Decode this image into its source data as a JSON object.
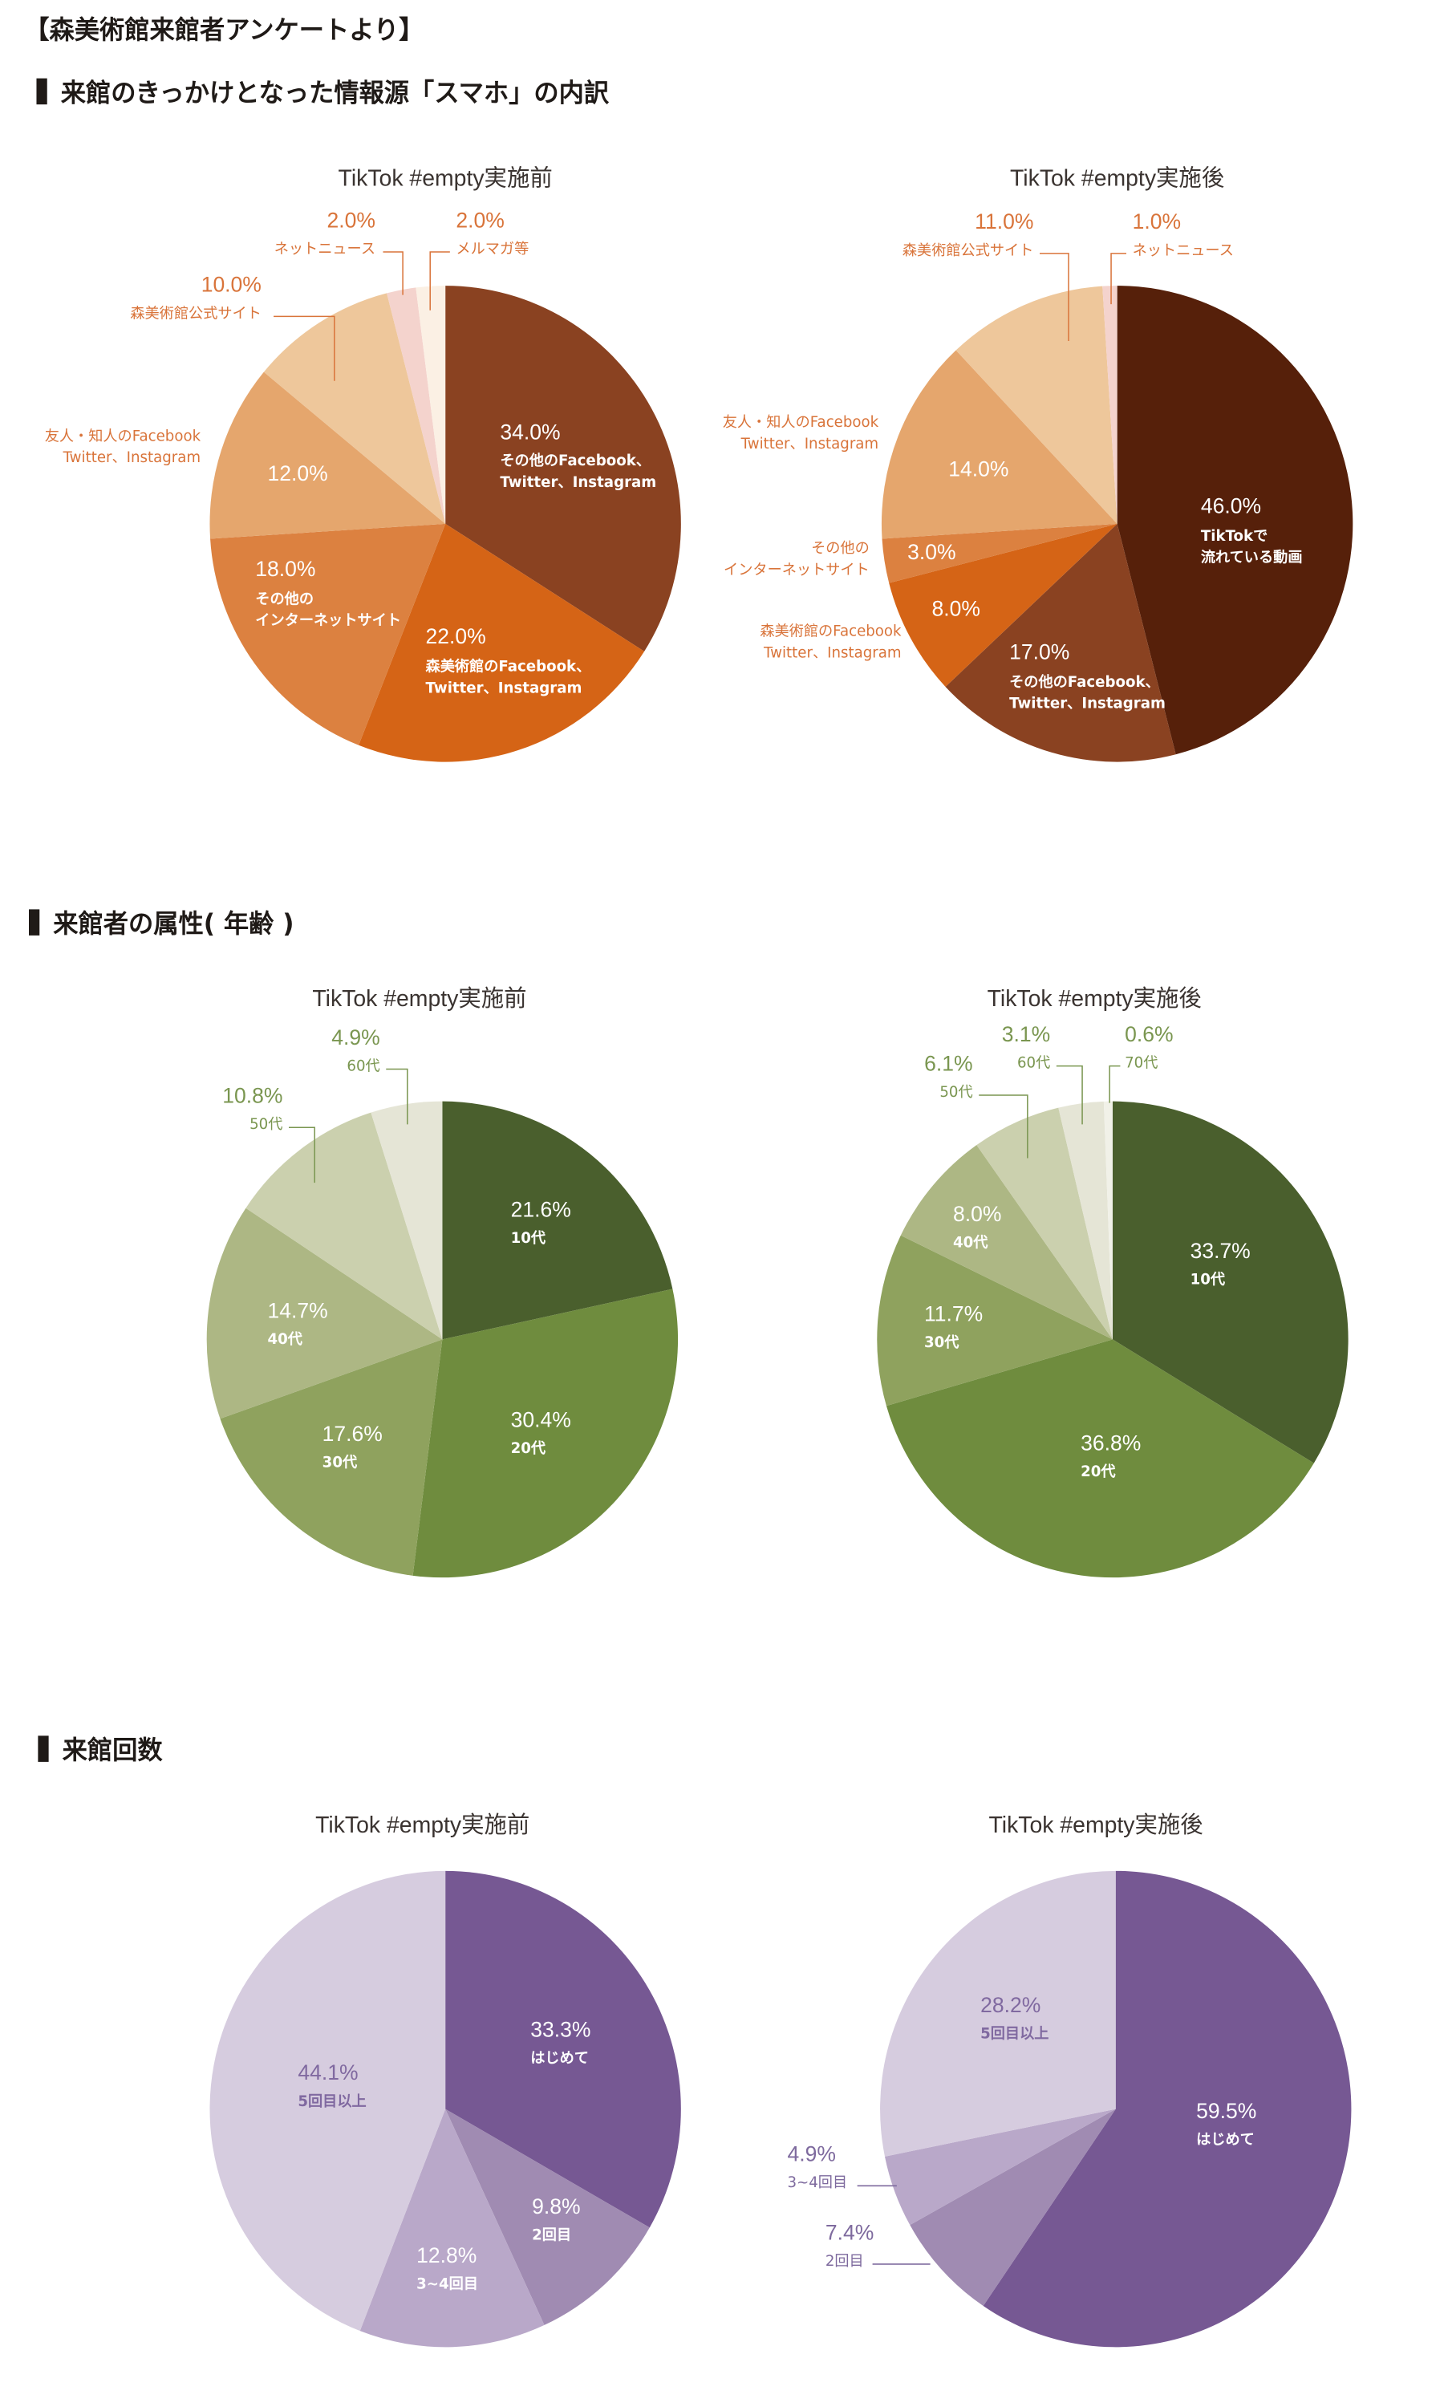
{
  "header": {
    "title": "【森美術館来館者アンケートより】"
  },
  "sections": [
    {
      "title": "来館のきっかけとなった情報源「スマホ」の内訳",
      "accent": "#D9743A"
    },
    {
      "title": "来館者の属性( 年齢 )",
      "accent": "#7A9650"
    },
    {
      "title": "来館回数",
      "accent": "#7E6A9E"
    }
  ],
  "chart_data": [
    {
      "type": "pie",
      "section": 0,
      "title": "TikTok #empty実施前",
      "slices": [
        {
          "value": 34.0,
          "pct": "34.0%",
          "lines": [
            "その他のFacebook、",
            "Twitter、Instagram"
          ],
          "color": "#8A4221"
        },
        {
          "value": 22.0,
          "pct": "22.0%",
          "lines": [
            "森美術館のFacebook、",
            "Twitter、Instagram"
          ],
          "color": "#D56416"
        },
        {
          "value": 18.0,
          "pct": "18.0%",
          "lines": [
            "その他の",
            "インターネットサイト"
          ],
          "color": "#DC8140"
        },
        {
          "value": 12.0,
          "pct": "12.0%",
          "lines": [
            "友人・知人のFacebook",
            "Twitter、Instagram"
          ],
          "color": "#E5A66D"
        },
        {
          "value": 10.0,
          "pct": "10.0%",
          "lines": [
            "森美術館公式サイト"
          ],
          "color": "#EEC79B"
        },
        {
          "value": 2.0,
          "pct": "2.0%",
          "lines": [
            "ネットニュース"
          ],
          "color": "#F4D3CD"
        },
        {
          "value": 2.0,
          "pct": "2.0%",
          "lines": [
            "メルマガ等"
          ],
          "color": "#FBF0E4"
        }
      ]
    },
    {
      "type": "pie",
      "section": 0,
      "title": "TikTok #empty実施後",
      "slices": [
        {
          "value": 46.0,
          "pct": "46.0%",
          "lines": [
            "TikTokで",
            "流れている動画"
          ],
          "color": "#56200A"
        },
        {
          "value": 17.0,
          "pct": "17.0%",
          "lines": [
            "その他のFacebook、",
            "Twitter、Instagram"
          ],
          "color": "#8A4221"
        },
        {
          "value": 8.0,
          "pct": "8.0%",
          "lines": [
            "森美術館のFacebook",
            "Twitter、Instagram"
          ],
          "color": "#D56416"
        },
        {
          "value": 3.0,
          "pct": "3.0%",
          "lines": [
            "その他の",
            "インターネットサイト"
          ],
          "color": "#DC8140"
        },
        {
          "value": 14.0,
          "pct": "14.0%",
          "lines": [
            "友人・知人のFacebook",
            "Twitter、Instagram"
          ],
          "color": "#E5A66D"
        },
        {
          "value": 11.0,
          "pct": "11.0%",
          "lines": [
            "森美術館公式サイト"
          ],
          "color": "#EEC79B"
        },
        {
          "value": 1.0,
          "pct": "1.0%",
          "lines": [
            "ネットニュース"
          ],
          "color": "#F4D3CD"
        }
      ]
    },
    {
      "type": "pie",
      "section": 1,
      "title": "TikTok #empty実施前",
      "slices": [
        {
          "value": 21.6,
          "pct": "21.6%",
          "lines": [
            "10代"
          ],
          "color": "#4A5F2D"
        },
        {
          "value": 30.4,
          "pct": "30.4%",
          "lines": [
            "20代"
          ],
          "color": "#6F8C3E"
        },
        {
          "value": 17.6,
          "pct": "17.6%",
          "lines": [
            "30代"
          ],
          "color": "#8FA25E"
        },
        {
          "value": 14.7,
          "pct": "14.7%",
          "lines": [
            "40代"
          ],
          "color": "#ADB784"
        },
        {
          "value": 10.8,
          "pct": "10.8%",
          "lines": [
            "50代"
          ],
          "color": "#CBD0AE"
        },
        {
          "value": 4.9,
          "pct": "4.9%",
          "lines": [
            "60代"
          ],
          "color": "#E5E5D6"
        }
      ]
    },
    {
      "type": "pie",
      "section": 1,
      "title": "TikTok #empty実施後",
      "slices": [
        {
          "value": 33.7,
          "pct": "33.7%",
          "lines": [
            "10代"
          ],
          "color": "#4A5F2D"
        },
        {
          "value": 36.8,
          "pct": "36.8%",
          "lines": [
            "20代"
          ],
          "color": "#6F8C3E"
        },
        {
          "value": 11.7,
          "pct": "11.7%",
          "lines": [
            "30代"
          ],
          "color": "#8FA25E"
        },
        {
          "value": 8.0,
          "pct": "8.0%",
          "lines": [
            "40代"
          ],
          "color": "#ADB784"
        },
        {
          "value": 6.1,
          "pct": "6.1%",
          "lines": [
            "50代"
          ],
          "color": "#CBD0AE"
        },
        {
          "value": 3.1,
          "pct": "3.1%",
          "lines": [
            "60代"
          ],
          "color": "#E5E5D6"
        },
        {
          "value": 0.6,
          "pct": "0.6%",
          "lines": [
            "70代"
          ],
          "color": "#F1F1E8"
        }
      ]
    },
    {
      "type": "pie",
      "section": 2,
      "title": "TikTok #empty実施前",
      "slices": [
        {
          "value": 33.3,
          "pct": "33.3%",
          "lines": [
            "はじめて"
          ],
          "color": "#765893"
        },
        {
          "value": 9.8,
          "pct": "9.8%",
          "lines": [
            "2回目"
          ],
          "color": "#A08BB2"
        },
        {
          "value": 12.8,
          "pct": "12.8%",
          "lines": [
            "3~4回目"
          ],
          "color": "#B9A8C9"
        },
        {
          "value": 44.1,
          "pct": "44.1%",
          "lines": [
            "5回目以上"
          ],
          "color": "#D6CCDF"
        }
      ]
    },
    {
      "type": "pie",
      "section": 2,
      "title": "TikTok #empty実施後",
      "slices": [
        {
          "value": 59.5,
          "pct": "59.5%",
          "lines": [
            "はじめて"
          ],
          "color": "#765893"
        },
        {
          "value": 7.4,
          "pct": "7.4%",
          "lines": [
            "2回目"
          ],
          "color": "#A08BB2"
        },
        {
          "value": 4.9,
          "pct": "4.9%",
          "lines": [
            "3~4回目"
          ],
          "color": "#B9A8C9"
        },
        {
          "value": 28.2,
          "pct": "28.2%",
          "lines": [
            "5回目以上"
          ],
          "color": "#D6CCDF"
        }
      ]
    }
  ]
}
